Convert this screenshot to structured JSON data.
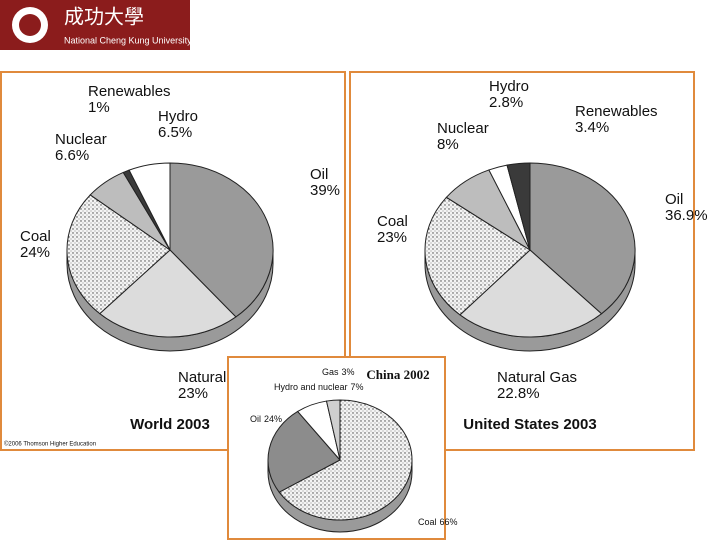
{
  "header": {
    "logo_text": "成功大學",
    "university": "National Cheng Kung University"
  },
  "chart_data": [
    {
      "type": "pie",
      "title": "World 2003",
      "credit": "©2006 Thomson Higher Education",
      "categories": [
        "Oil",
        "Natural Gas",
        "Coal",
        "Nuclear",
        "Renewables",
        "Hydro"
      ],
      "values": [
        39,
        23,
        24,
        6.6,
        1,
        6.5
      ],
      "value_labels": [
        "39%",
        "23%",
        "24%",
        "6.6%",
        "1%",
        "6.5%"
      ],
      "colors": [
        "#9a9a9a",
        "#dcdcdc",
        "#f2f2f2",
        "#bdbdbd",
        "#3a3a3a",
        "#ffffff"
      ]
    },
    {
      "type": "pie",
      "title": "United States 2003",
      "categories": [
        "Oil",
        "Natural Gas",
        "Coal",
        "Nuclear",
        "Hydro",
        "Renewables"
      ],
      "values": [
        36.9,
        22.8,
        23,
        8,
        2.8,
        3.4
      ],
      "value_labels": [
        "36.9%",
        "22.8%",
        "23%",
        "8%",
        "2.8%",
        "3.4%"
      ],
      "colors": [
        "#9a9a9a",
        "#dcdcdc",
        "#f2f2f2",
        "#bdbdbd",
        "#ffffff",
        "#3a3a3a"
      ]
    },
    {
      "type": "pie",
      "title": "China 2002",
      "categories": [
        "Coal",
        "Oil",
        "Hydro and nuclear",
        "Gas"
      ],
      "values": [
        66,
        24,
        7,
        3
      ],
      "value_labels": [
        "66%",
        "24%",
        "7%",
        "3%"
      ],
      "colors": [
        "#ececec",
        "#8c8c8c",
        "#ffffff",
        "#cfcfcf"
      ]
    }
  ]
}
